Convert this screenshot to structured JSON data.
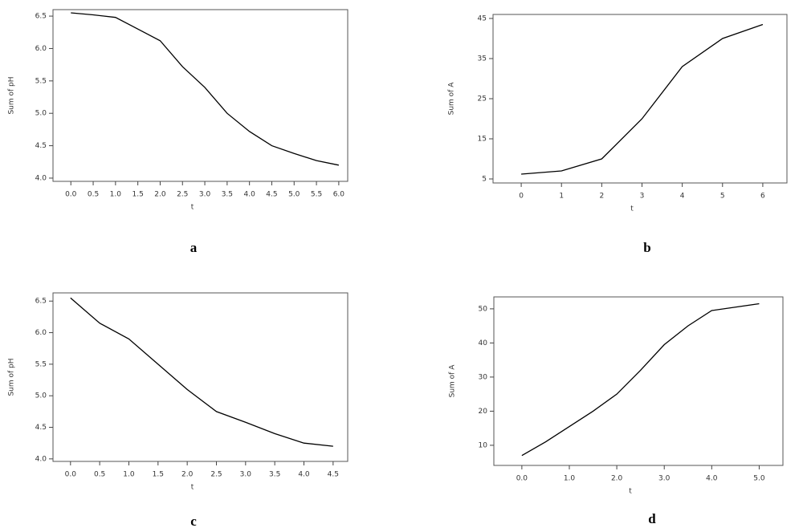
{
  "chart_data": [
    {
      "type": "line",
      "caption": "a",
      "xlabel": "t",
      "ylabel": "Sum of pH",
      "color": "#000000",
      "x": [
        0,
        0.5,
        1,
        1.5,
        2,
        2.5,
        3,
        3.5,
        4,
        4.5,
        5,
        5.5,
        6
      ],
      "values": [
        6.55,
        6.52,
        6.48,
        6.3,
        6.12,
        5.72,
        5.4,
        5.0,
        4.72,
        4.5,
        4.38,
        4.27,
        4.2
      ],
      "xlim": [
        -0.4,
        6.2
      ],
      "ylim": [
        3.95,
        6.6
      ],
      "xticks": [
        {
          "value": 0,
          "label": "0.0"
        },
        0.5,
        {
          "value": 1,
          "label": "1.0"
        },
        1.5,
        {
          "value": 2,
          "label": "2.0"
        },
        2.5,
        {
          "value": 3,
          "label": "3.0"
        },
        3.5,
        {
          "value": 4,
          "label": "4.0"
        },
        4.5,
        {
          "value": 5,
          "label": "5.0"
        },
        5.5,
        {
          "value": 6,
          "label": "6.0"
        }
      ],
      "yticks": [
        {
          "value": 4,
          "label": "4.0"
        },
        4.5,
        {
          "value": 5,
          "label": "5.0"
        },
        5.5,
        {
          "value": 6,
          "label": "6.0"
        },
        6.5
      ]
    },
    {
      "type": "line",
      "caption": "b",
      "xlabel": "t",
      "ylabel": "Sum of A",
      "color": "#000000",
      "x": [
        0,
        1,
        2,
        3,
        4,
        5,
        6
      ],
      "values": [
        6.2,
        7,
        10,
        20,
        33,
        40,
        43.5
      ],
      "xlim": [
        -0.7,
        6.6
      ],
      "ylim": [
        4,
        46
      ],
      "xticks": [
        0,
        1,
        2,
        3,
        4,
        5,
        6
      ],
      "yticks": [
        5,
        15,
        25,
        35,
        45
      ]
    },
    {
      "type": "line",
      "caption": "c",
      "xlabel": "t",
      "ylabel": "Sum of pH",
      "color": "#000000",
      "x": [
        0,
        0.5,
        1,
        1.5,
        2,
        2.5,
        3,
        3.5,
        4,
        4.5
      ],
      "values": [
        6.55,
        6.15,
        5.9,
        5.5,
        5.1,
        4.75,
        4.58,
        4.4,
        4.25,
        4.2
      ],
      "xlim": [
        -0.3,
        4.75
      ],
      "ylim": [
        3.96,
        6.63
      ],
      "xticks": [
        {
          "value": 0,
          "label": "0.0"
        },
        0.5,
        {
          "value": 1,
          "label": "1.0"
        },
        1.5,
        {
          "value": 2,
          "label": "2.0"
        },
        2.5,
        {
          "value": 3,
          "label": "3.0"
        },
        3.5,
        {
          "value": 4,
          "label": "4.0"
        },
        4.5
      ],
      "yticks": [
        {
          "value": 4,
          "label": "4.0"
        },
        4.5,
        {
          "value": 5,
          "label": "5.0"
        },
        5.5,
        {
          "value": 6,
          "label": "6.0"
        },
        6.5
      ]
    },
    {
      "type": "line",
      "caption": "d",
      "xlabel": "t",
      "ylabel": "Sum of A",
      "color": "#000000",
      "x": [
        0,
        0.5,
        1,
        1.5,
        2,
        2.5,
        3,
        3.5,
        4,
        4.5,
        5
      ],
      "values": [
        7,
        11,
        15.5,
        20,
        25,
        32,
        39.5,
        45,
        49.5,
        50.5,
        51.5
      ],
      "xlim": [
        -0.59,
        5.5
      ],
      "ylim": [
        4.1,
        53.5
      ],
      "xticks": [
        {
          "value": 0,
          "label": "0.0"
        },
        {
          "value": 1,
          "label": "1.0"
        },
        {
          "value": 2,
          "label": "2.0"
        },
        {
          "value": 3,
          "label": "3.0"
        },
        {
          "value": 4,
          "label": "4.0"
        },
        {
          "value": 5,
          "label": "5.0"
        }
      ],
      "yticks": [
        10,
        20,
        30,
        40,
        50
      ]
    }
  ]
}
